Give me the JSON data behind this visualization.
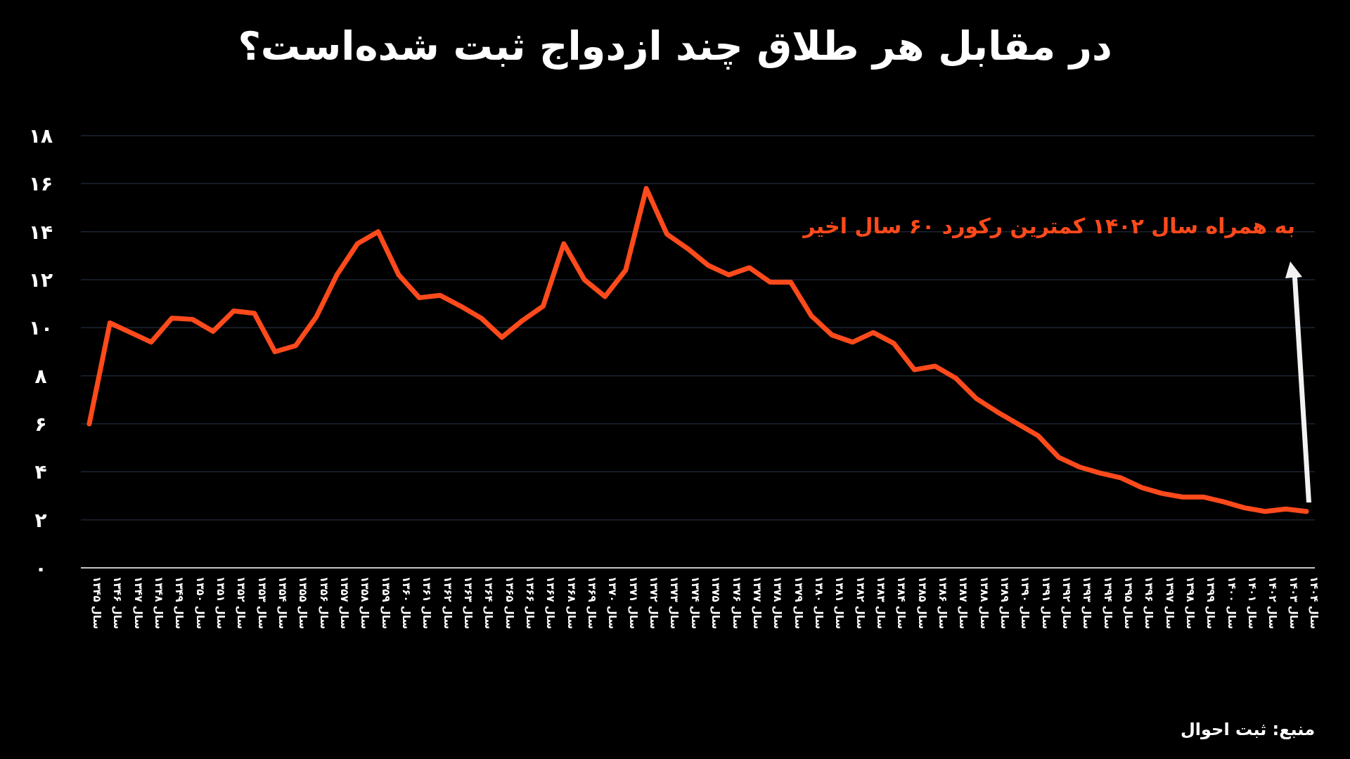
{
  "chart_data": {
    "type": "line",
    "title": "در مقابل هر طلاق چند ازدواج ثبت شده‌است؟",
    "categories": [
      "سال ۱۳۴۵",
      "سال ۱۳۴۶",
      "سال ۱۳۴۷",
      "سال ۱۳۴۸",
      "سال ۱۳۴۹",
      "سال ۱۳۵۰",
      "سال ۱۳۵۱",
      "سال ۱۳۵۲",
      "سال ۱۳۵۳",
      "سال ۱۳۵۴",
      "سال ۱۳۵۵",
      "سال ۱۳۵۶",
      "سال ۱۳۵۷",
      "سال ۱۳۵۸",
      "سال ۱۳۵۹",
      "سال ۱۳۶۰",
      "سال ۱۳۶۱",
      "سال ۱۳۶۲",
      "سال ۱۳۶۳",
      "سال ۱۳۶۴",
      "سال ۱۳۶۵",
      "سال ۱۳۶۶",
      "سال ۱۳۶۷",
      "سال ۱۳۶۸",
      "سال ۱۳۶۹",
      "سال ۱۳۷۰",
      "سال ۱۳۷۱",
      "سال ۱۳۷۲",
      "سال ۱۳۷۳",
      "سال ۱۳۷۴",
      "سال ۱۳۷۵",
      "سال ۱۳۷۶",
      "سال ۱۳۷۷",
      "سال ۱۳۷۸",
      "سال ۱۳۷۹",
      "سال ۱۳۸۰",
      "سال ۱۳۸۱",
      "سال ۱۳۸۲",
      "سال ۱۳۸۳",
      "سال ۱۳۸۴",
      "سال ۱۳۸۵",
      "سال ۱۳۸۶",
      "سال ۱۳۸۷",
      "سال ۱۳۸۸",
      "سال ۱۳۸۹",
      "سال ۱۳۹۰",
      "سال ۱۳۹۱",
      "سال ۱۳۹۲",
      "سال ۱۳۹۳",
      "سال ۱۳۹۴",
      "سال ۱۳۹۵",
      "سال ۱۳۹۶",
      "سال ۱۳۹۷",
      "سال ۱۳۹۸",
      "سال ۱۳۹۹",
      "سال ۱۴۰۰",
      "سال ۱۴۰۱",
      "سال ۱۴۰۲",
      "سال ۱۴۰۳",
      "سال ۱۴۰۴"
    ],
    "values": [
      6.0,
      10.2,
      9.8,
      9.4,
      10.4,
      10.35,
      9.85,
      10.7,
      10.6,
      9.0,
      9.25,
      10.45,
      12.2,
      13.5,
      14.0,
      12.2,
      11.25,
      11.35,
      10.9,
      10.4,
      9.6,
      10.3,
      10.9,
      13.5,
      12.0,
      11.3,
      12.4,
      15.8,
      13.9,
      13.3,
      12.6,
      12.2,
      12.5,
      11.9,
      11.9,
      10.5,
      9.7,
      9.4,
      9.8,
      9.35,
      8.25,
      8.4,
      7.9,
      7.05,
      6.5,
      6.0,
      5.5,
      4.6,
      4.2,
      3.95,
      3.75,
      3.35,
      3.1,
      2.95,
      2.95,
      2.75,
      2.5,
      2.35,
      2.45,
      2.35
    ],
    "color": "#ff4a1c",
    "ylim": [
      0,
      18
    ],
    "yticks": [
      {
        "value": 0,
        "label": "۰"
      },
      {
        "value": 2,
        "label": "۲"
      },
      {
        "value": 4,
        "label": "۴"
      },
      {
        "value": 6,
        "label": "۶"
      },
      {
        "value": 8,
        "label": "۸"
      },
      {
        "value": 10,
        "label": "۱۰"
      },
      {
        "value": 12,
        "label": "۱۲"
      },
      {
        "value": 14,
        "label": "۱۴"
      },
      {
        "value": 16,
        "label": "۱۶"
      },
      {
        "value": 18,
        "label": "۱۸"
      }
    ],
    "grid": "y",
    "annotations": [
      "به همراه سال ۱۴۰۲ کمترین رکورد ۶۰ سال اخیر",
      "منبع: ثبت احوال"
    ]
  }
}
